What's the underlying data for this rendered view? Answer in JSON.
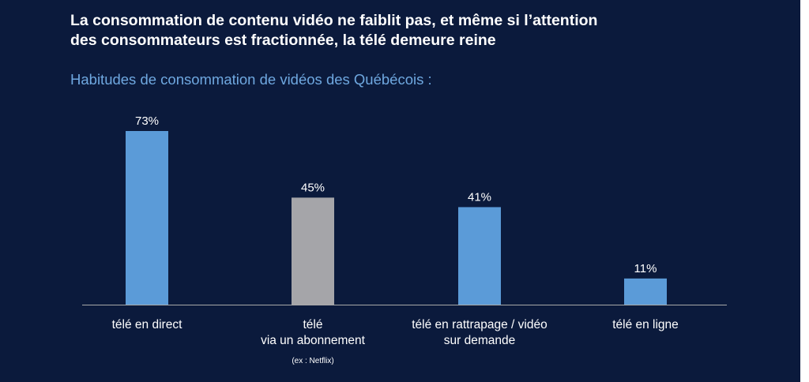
{
  "slide": {
    "title_lines": [
      "La consommation de contenu vidéo ne faiblit pas, et même si l’attention",
      "des consommateurs est fractionnée, la télé demeure reine"
    ],
    "subtitle": "Habitudes de consommation de vidéos des Québécois :"
  },
  "chart_data": {
    "type": "bar",
    "title": "",
    "xlabel": "",
    "ylabel": "",
    "ylim": [
      0,
      80
    ],
    "grid": false,
    "categories": [
      {
        "lines": [
          "télé en direct"
        ],
        "note": ""
      },
      {
        "lines": [
          "télé",
          "via un abonnement"
        ],
        "note": "(ex : Netflix)"
      },
      {
        "lines": [
          "télé en rattrapage / vidéo",
          "sur demande"
        ],
        "note": ""
      },
      {
        "lines": [
          "télé en ligne"
        ],
        "note": ""
      }
    ],
    "values": [
      73,
      45,
      41,
      11
    ],
    "value_labels": [
      "73%",
      "45%",
      "41%",
      "11%"
    ],
    "colors": [
      "#5b9bd8",
      "#a5a5a9",
      "#5b9bd8",
      "#5b9bd8"
    ],
    "axis_color": "#a8a8a8"
  }
}
